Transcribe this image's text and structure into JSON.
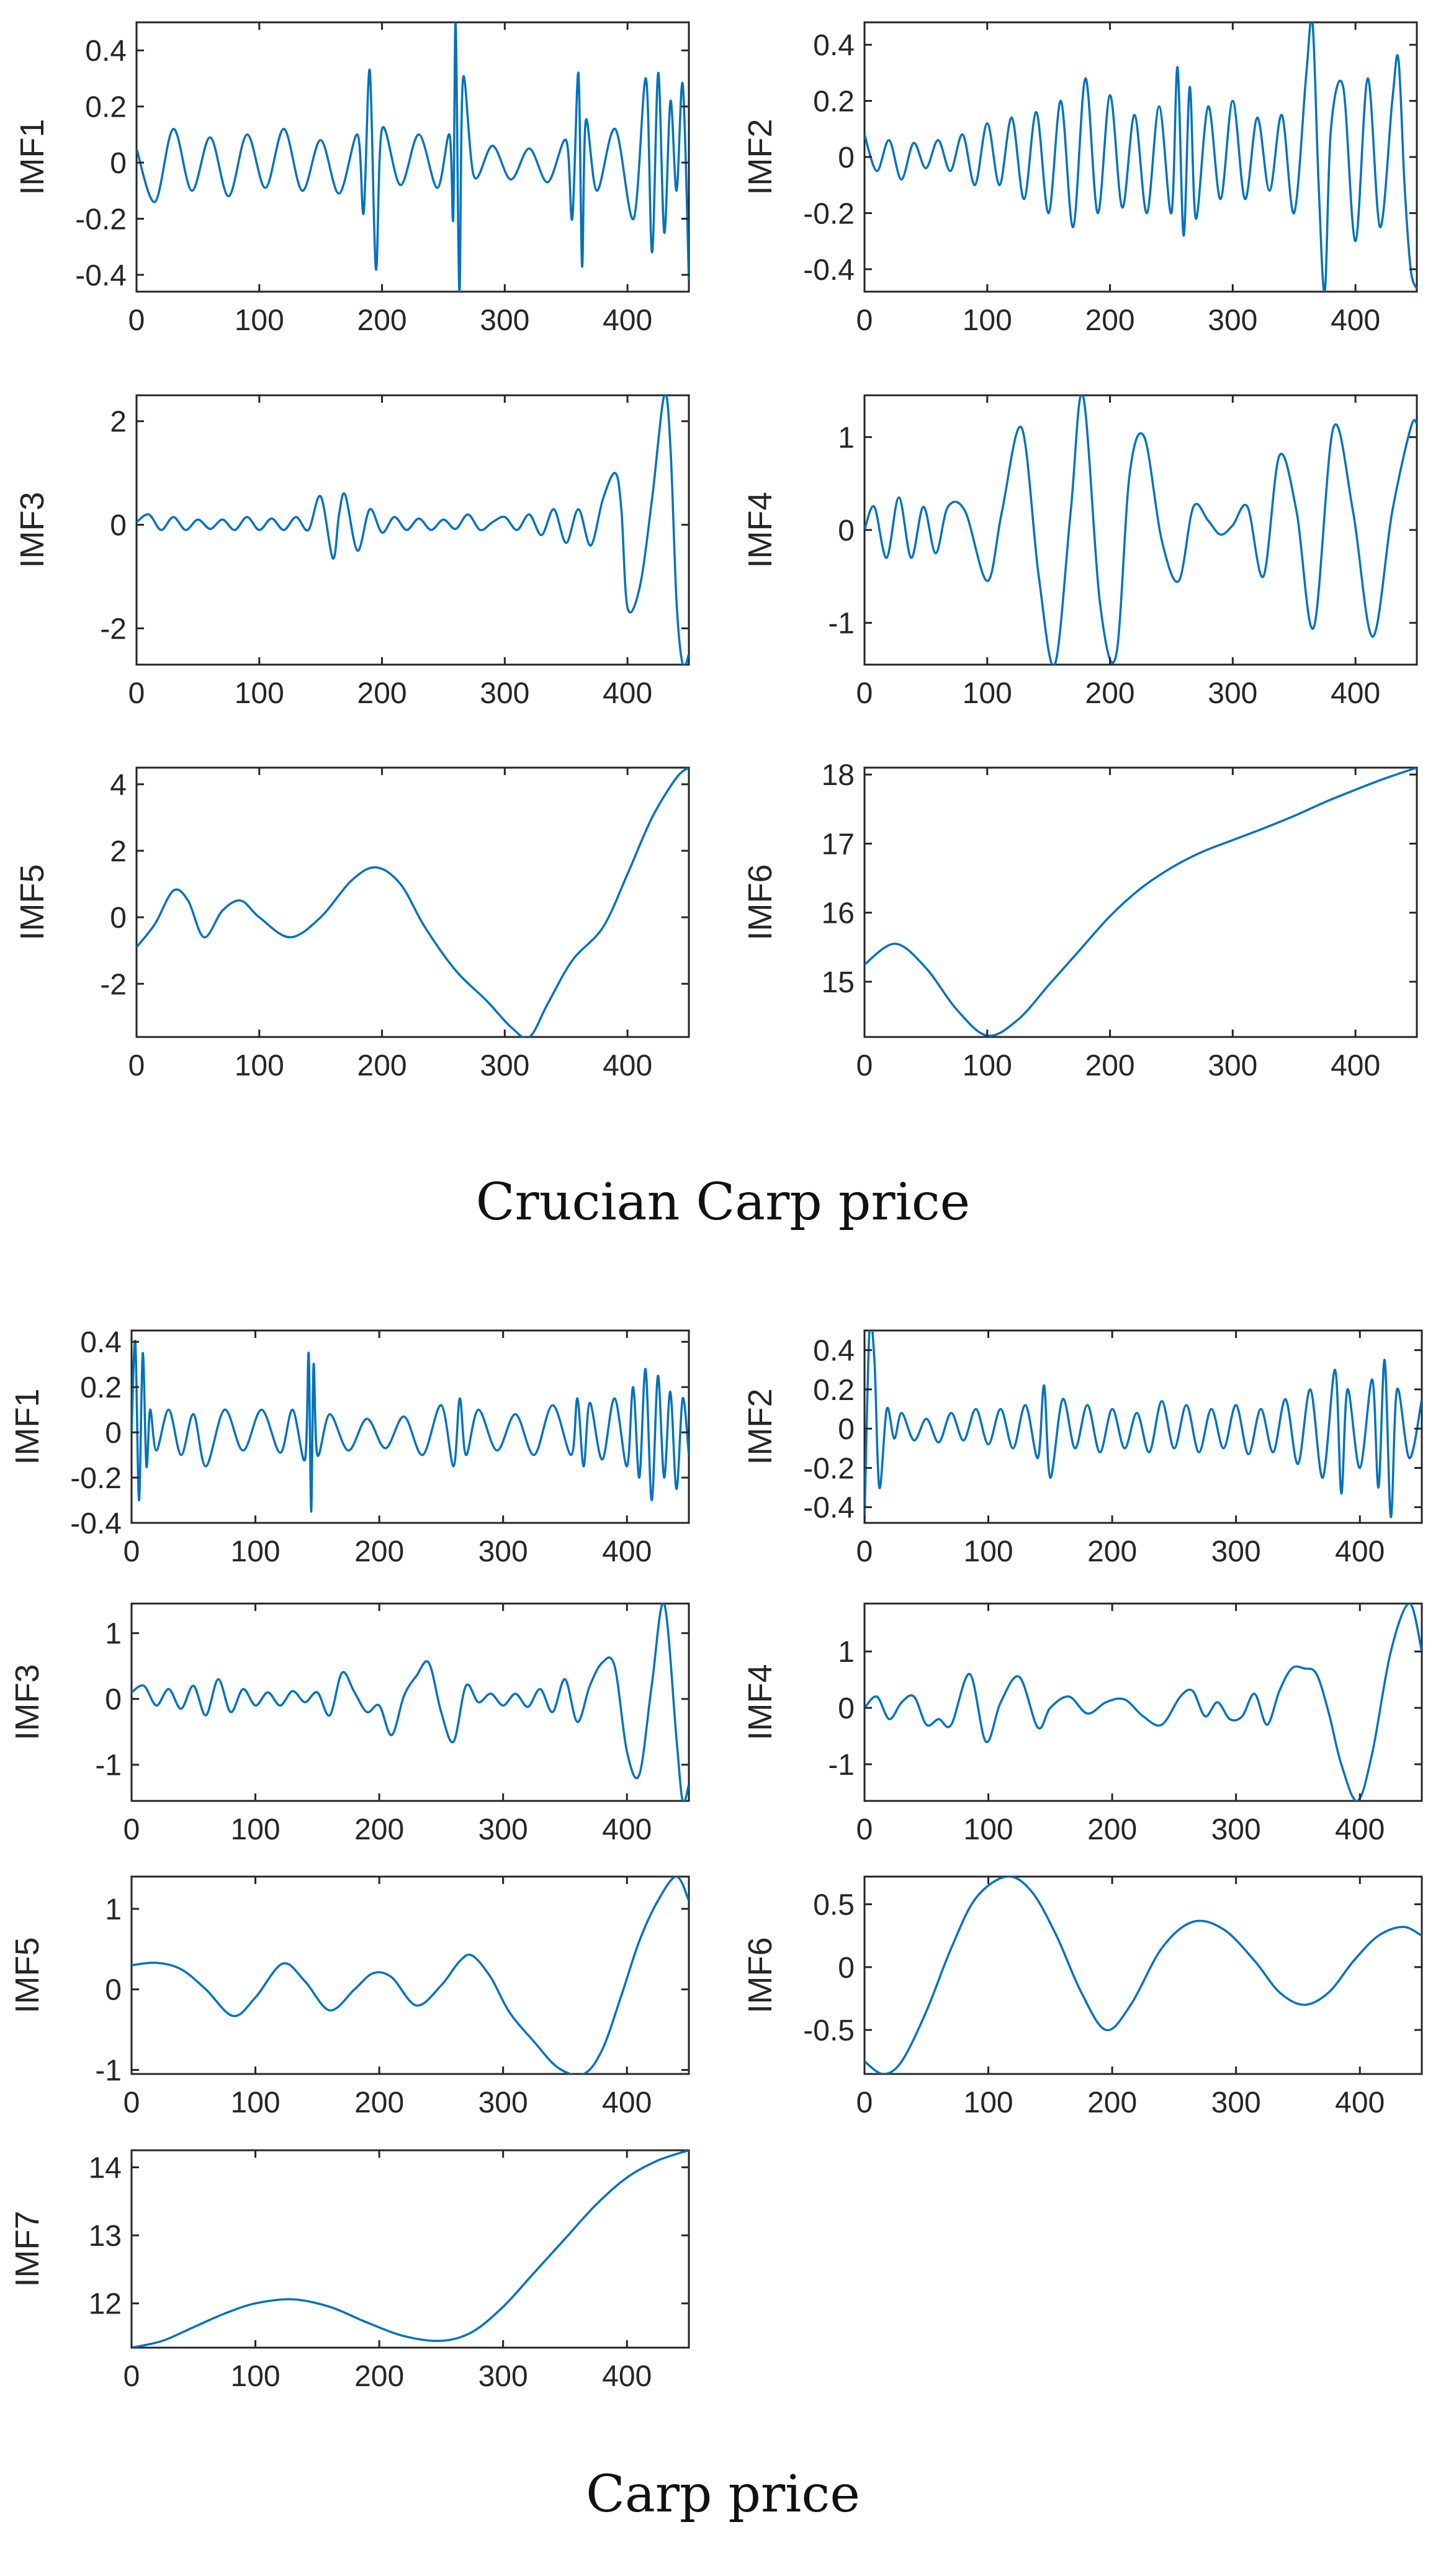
{
  "captions": {
    "top": "Crucian Carp price",
    "bottom": "Carp price"
  },
  "colors": {
    "line": "#0072BD",
    "axis": "#262626"
  },
  "chart_data": [
    {
      "id": "c-imf1",
      "group": "Crucian Carp price",
      "type": "line",
      "ylabel": "IMF1",
      "xlim": [
        0,
        450
      ],
      "ylim": [
        -0.46,
        0.5
      ],
      "xticks": [
        "0",
        "100",
        "200",
        "300",
        "400"
      ],
      "yticks": [
        "-0.4",
        "-0.2",
        "0",
        "0.2",
        "0.4"
      ],
      "x": [
        0,
        15,
        30,
        45,
        60,
        75,
        90,
        105,
        120,
        135,
        150,
        165,
        180,
        185,
        190,
        195,
        200,
        215,
        230,
        245,
        255,
        258,
        260,
        263,
        266,
        275,
        290,
        305,
        320,
        335,
        350,
        355,
        360,
        363,
        366,
        375,
        390,
        405,
        415,
        420,
        425,
        430,
        435,
        440,
        445,
        450
      ],
      "y": [
        0.05,
        -0.14,
        0.12,
        -0.1,
        0.09,
        -0.12,
        0.1,
        -0.09,
        0.12,
        -0.1,
        0.08,
        -0.11,
        0.1,
        -0.18,
        0.33,
        -0.38,
        0.12,
        -0.08,
        0.1,
        -0.09,
        0.1,
        -0.2,
        0.5,
        -0.46,
        0.3,
        -0.05,
        0.06,
        -0.06,
        0.05,
        -0.07,
        0.08,
        -0.2,
        0.32,
        -0.37,
        0.15,
        -0.1,
        0.12,
        -0.2,
        0.3,
        -0.32,
        0.32,
        -0.25,
        0.22,
        -0.1,
        0.28,
        -0.42
      ]
    },
    {
      "id": "c-imf2",
      "group": "Crucian Carp price",
      "type": "line",
      "ylabel": "IMF2",
      "xlim": [
        0,
        450
      ],
      "ylim": [
        -0.48,
        0.48
      ],
      "xticks": [
        "0",
        "100",
        "200",
        "300",
        "400"
      ],
      "yticks": [
        "-0.4",
        "-0.2",
        "0",
        "0.2",
        "0.4"
      ],
      "x": [
        0,
        10,
        20,
        30,
        40,
        50,
        60,
        70,
        80,
        90,
        100,
        110,
        120,
        130,
        140,
        150,
        160,
        170,
        180,
        190,
        200,
        210,
        220,
        230,
        240,
        250,
        255,
        260,
        265,
        270,
        280,
        290,
        300,
        310,
        320,
        330,
        340,
        350,
        360,
        365,
        370,
        375,
        380,
        390,
        400,
        410,
        420,
        430,
        435,
        440,
        445,
        450
      ],
      "y": [
        0.08,
        -0.05,
        0.06,
        -0.08,
        0.05,
        -0.04,
        0.06,
        -0.05,
        0.08,
        -0.1,
        0.12,
        -0.1,
        0.14,
        -0.15,
        0.16,
        -0.2,
        0.2,
        -0.25,
        0.28,
        -0.2,
        0.22,
        -0.18,
        0.15,
        -0.2,
        0.18,
        -0.2,
        0.32,
        -0.28,
        0.25,
        -0.22,
        0.18,
        -0.15,
        0.2,
        -0.15,
        0.14,
        -0.12,
        0.15,
        -0.2,
        0.3,
        0.48,
        -0.1,
        -0.48,
        0.1,
        0.25,
        -0.3,
        0.28,
        -0.25,
        0.2,
        0.35,
        -0.1,
        -0.4,
        -0.47
      ]
    },
    {
      "id": "c-imf3",
      "group": "Crucian Carp price",
      "type": "line",
      "ylabel": "IMF3",
      "xlim": [
        0,
        450
      ],
      "ylim": [
        -2.7,
        2.5
      ],
      "xticks": [
        "0",
        "100",
        "200",
        "300",
        "400"
      ],
      "yticks": [
        "-2",
        "0",
        "2"
      ],
      "x": [
        0,
        10,
        20,
        30,
        40,
        50,
        60,
        70,
        80,
        90,
        100,
        110,
        120,
        130,
        140,
        150,
        160,
        165,
        170,
        180,
        190,
        200,
        210,
        220,
        230,
        240,
        250,
        260,
        270,
        280,
        290,
        300,
        310,
        320,
        330,
        340,
        350,
        360,
        370,
        380,
        390,
        395,
        400,
        410,
        420,
        430,
        435,
        440,
        445,
        450
      ],
      "y": [
        0.05,
        0.2,
        -0.1,
        0.15,
        -0.1,
        0.1,
        -0.08,
        0.1,
        -0.1,
        0.15,
        -0.1,
        0.12,
        -0.1,
        0.15,
        -0.1,
        0.55,
        -0.65,
        0.2,
        0.58,
        -0.5,
        0.3,
        -0.15,
        0.15,
        -0.1,
        0.12,
        -0.1,
        0.1,
        -0.08,
        0.2,
        -0.1,
        0.05,
        0.15,
        -0.1,
        0.2,
        -0.2,
        0.3,
        -0.35,
        0.3,
        -0.4,
        0.5,
        1.0,
        0.3,
        -1.6,
        -1.2,
        0.5,
        2.5,
        1.5,
        -1.5,
        -2.7,
        -2.5
      ]
    },
    {
      "id": "c-imf4",
      "group": "Crucian Carp price",
      "type": "line",
      "ylabel": "IMF4",
      "xlim": [
        0,
        450
      ],
      "ylim": [
        -1.45,
        1.45
      ],
      "xticks": [
        "0",
        "100",
        "200",
        "300",
        "400"
      ],
      "yticks": [
        "-1",
        "0",
        "1"
      ],
      "x": [
        0,
        8,
        18,
        28,
        38,
        48,
        58,
        68,
        82,
        100,
        112,
        128,
        142,
        155,
        168,
        178,
        192,
        205,
        216,
        228,
        242,
        256,
        268,
        280,
        290,
        300,
        312,
        325,
        338,
        352,
        366,
        382,
        398,
        414,
        430,
        445,
        450
      ],
      "y": [
        0.0,
        0.25,
        -0.3,
        0.35,
        -0.3,
        0.25,
        -0.25,
        0.25,
        0.2,
        -0.55,
        0.2,
        1.1,
        -0.5,
        -1.45,
        0.2,
        1.45,
        -0.8,
        -1.35,
        0.6,
        1.0,
        -0.1,
        -0.55,
        0.25,
        0.1,
        -0.05,
        0.05,
        0.25,
        -0.5,
        0.8,
        0.2,
        -1.05,
        1.1,
        0.2,
        -1.15,
        0.2,
        1.1,
        1.15
      ]
    },
    {
      "id": "c-imf5",
      "group": "Crucian Carp price",
      "type": "line",
      "ylabel": "IMF5",
      "xlim": [
        0,
        450
      ],
      "ylim": [
        -3.6,
        4.5
      ],
      "xticks": [
        "0",
        "100",
        "200",
        "300",
        "400"
      ],
      "yticks": [
        "-2",
        "0",
        "2",
        "4"
      ],
      "x": [
        0,
        15,
        30,
        42,
        55,
        70,
        85,
        100,
        125,
        150,
        175,
        195,
        215,
        235,
        260,
        285,
        305,
        320,
        335,
        355,
        380,
        400,
        420,
        440,
        450
      ],
      "y": [
        -0.9,
        -0.2,
        0.8,
        0.5,
        -0.6,
        0.2,
        0.5,
        0.0,
        -0.6,
        0.0,
        1.1,
        1.5,
        1.0,
        -0.3,
        -1.6,
        -2.5,
        -3.3,
        -3.6,
        -2.6,
        -1.3,
        -0.3,
        1.3,
        3.0,
        4.2,
        4.5
      ]
    },
    {
      "id": "c-imf6",
      "group": "Crucian Carp price",
      "type": "line",
      "ylabel": "IMF6",
      "xlim": [
        0,
        450
      ],
      "ylim": [
        14.2,
        18.1
      ],
      "xticks": [
        "0",
        "100",
        "200",
        "300",
        "400"
      ],
      "yticks": [
        "15",
        "16",
        "17",
        "18"
      ],
      "x": [
        0,
        25,
        50,
        75,
        100,
        125,
        150,
        175,
        200,
        225,
        250,
        275,
        300,
        325,
        350,
        375,
        400,
        425,
        450
      ],
      "y": [
        15.25,
        15.55,
        15.2,
        14.6,
        14.22,
        14.45,
        14.95,
        15.45,
        15.95,
        16.35,
        16.65,
        16.88,
        17.05,
        17.22,
        17.4,
        17.6,
        17.78,
        17.95,
        18.1
      ]
    },
    {
      "id": "b-imf1",
      "group": "Carp price",
      "type": "line",
      "ylabel": "IMF1",
      "xlim": [
        0,
        450
      ],
      "ylim": [
        -0.4,
        0.45
      ],
      "xticks": [
        "0",
        "100",
        "200",
        "300",
        "400"
      ],
      "yticks": [
        "-0.4",
        "-0.2",
        "0",
        "0.2",
        "0.4"
      ],
      "x": [
        0,
        3,
        6,
        9,
        12,
        15,
        20,
        30,
        40,
        50,
        60,
        75,
        90,
        105,
        120,
        130,
        140,
        143,
        145,
        147,
        150,
        160,
        175,
        190,
        205,
        220,
        235,
        250,
        260,
        265,
        270,
        280,
        295,
        310,
        325,
        340,
        355,
        360,
        365,
        370,
        380,
        390,
        400,
        405,
        410,
        415,
        420,
        425,
        430,
        435,
        440,
        445,
        450
      ],
      "y": [
        0.0,
        0.4,
        -0.3,
        0.35,
        -0.15,
        0.1,
        -0.08,
        0.1,
        -0.1,
        0.08,
        -0.15,
        0.1,
        -0.08,
        0.1,
        -0.09,
        0.1,
        -0.12,
        0.35,
        -0.35,
        0.3,
        -0.1,
        0.08,
        -0.08,
        0.06,
        -0.07,
        0.07,
        -0.1,
        0.12,
        -0.15,
        0.15,
        -0.1,
        0.1,
        -0.08,
        0.08,
        -0.1,
        0.12,
        -0.1,
        0.15,
        -0.15,
        0.13,
        -0.12,
        0.15,
        -0.15,
        0.2,
        -0.2,
        0.28,
        -0.3,
        0.25,
        -0.2,
        0.18,
        -0.25,
        0.15,
        -0.1
      ]
    },
    {
      "id": "b-imf2",
      "group": "Carp price",
      "type": "line",
      "ylabel": "IMF2",
      "xlim": [
        0,
        450
      ],
      "ylim": [
        -0.48,
        0.5
      ],
      "xticks": [
        "0",
        "100",
        "200",
        "300",
        "400"
      ],
      "yticks": [
        "-0.4",
        "-0.2",
        "0",
        "0.2",
        "0.4"
      ],
      "x": [
        0,
        4,
        8,
        12,
        18,
        24,
        30,
        40,
        50,
        60,
        70,
        80,
        90,
        100,
        110,
        120,
        130,
        140,
        145,
        150,
        160,
        170,
        180,
        190,
        200,
        210,
        220,
        230,
        240,
        250,
        260,
        270,
        280,
        290,
        300,
        310,
        320,
        330,
        340,
        350,
        360,
        370,
        380,
        385,
        390,
        400,
        410,
        415,
        420,
        425,
        430,
        440,
        450
      ],
      "y": [
        -0.48,
        0.5,
        0.35,
        -0.3,
        0.1,
        -0.05,
        0.08,
        -0.06,
        0.05,
        -0.07,
        0.08,
        -0.06,
        0.1,
        -0.08,
        0.1,
        -0.1,
        0.12,
        -0.15,
        0.22,
        -0.25,
        0.15,
        -0.1,
        0.12,
        -0.12,
        0.1,
        -0.1,
        0.08,
        -0.12,
        0.14,
        -0.1,
        0.12,
        -0.12,
        0.1,
        -0.1,
        0.12,
        -0.13,
        0.1,
        -0.12,
        0.15,
        -0.18,
        0.2,
        -0.25,
        0.3,
        -0.33,
        0.2,
        -0.2,
        0.25,
        -0.3,
        0.35,
        -0.45,
        0.2,
        -0.15,
        0.15
      ]
    },
    {
      "id": "b-imf3",
      "group": "Carp price",
      "type": "line",
      "ylabel": "IMF3",
      "xlim": [
        0,
        450
      ],
      "ylim": [
        -1.55,
        1.45
      ],
      "xticks": [
        "0",
        "100",
        "200",
        "300",
        "400"
      ],
      "yticks": [
        "-1",
        "0",
        "1"
      ],
      "x": [
        0,
        10,
        20,
        30,
        40,
        50,
        60,
        70,
        80,
        90,
        100,
        110,
        120,
        130,
        140,
        150,
        160,
        170,
        180,
        190,
        200,
        210,
        220,
        230,
        240,
        250,
        260,
        270,
        280,
        290,
        300,
        310,
        320,
        330,
        340,
        350,
        360,
        370,
        380,
        390,
        400,
        410,
        420,
        430,
        440,
        445,
        450
      ],
      "y": [
        0.1,
        0.2,
        -0.1,
        0.15,
        -0.15,
        0.2,
        -0.25,
        0.3,
        -0.2,
        0.15,
        -0.1,
        0.1,
        -0.1,
        0.12,
        -0.05,
        0.1,
        -0.25,
        0.4,
        0.1,
        -0.2,
        -0.1,
        -0.55,
        0.05,
        0.35,
        0.55,
        -0.2,
        -0.65,
        0.2,
        -0.05,
        0.08,
        -0.1,
        0.08,
        -0.12,
        0.15,
        -0.2,
        0.3,
        -0.35,
        0.2,
        0.55,
        0.5,
        -0.8,
        -1.15,
        0.2,
        1.45,
        -0.6,
        -1.55,
        -1.3
      ]
    },
    {
      "id": "b-imf4",
      "group": "Carp price",
      "type": "line",
      "ylabel": "IMF4",
      "xlim": [
        0,
        450
      ],
      "ylim": [
        -1.65,
        1.85
      ],
      "xticks": [
        "0",
        "100",
        "200",
        "300",
        "400"
      ],
      "yticks": [
        "-1",
        "0",
        "1"
      ],
      "x": [
        0,
        10,
        20,
        30,
        40,
        50,
        60,
        70,
        85,
        98,
        110,
        125,
        140,
        150,
        165,
        180,
        195,
        210,
        225,
        240,
        255,
        265,
        275,
        285,
        295,
        305,
        315,
        325,
        335,
        345,
        355,
        365,
        375,
        385,
        398,
        410,
        425,
        440,
        450
      ],
      "y": [
        0.0,
        0.2,
        -0.2,
        0.1,
        0.2,
        -0.3,
        -0.2,
        -0.3,
        0.6,
        -0.6,
        0.1,
        0.55,
        -0.35,
        0.0,
        0.2,
        -0.1,
        0.1,
        0.15,
        -0.15,
        -0.3,
        0.2,
        0.3,
        -0.15,
        0.1,
        -0.2,
        -0.15,
        0.25,
        -0.3,
        0.3,
        0.7,
        0.7,
        0.6,
        -0.1,
        -1.0,
        -1.65,
        -0.8,
        1.0,
        1.85,
        1.0
      ]
    },
    {
      "id": "b-imf5",
      "group": "Carp price",
      "type": "line",
      "ylabel": "IMF5",
      "xlim": [
        0,
        450
      ],
      "ylim": [
        -1.05,
        1.4
      ],
      "xticks": [
        "0",
        "100",
        "200",
        "300",
        "400"
      ],
      "yticks": [
        "-1",
        "0",
        "1"
      ],
      "x": [
        0,
        20,
        40,
        60,
        82,
        100,
        122,
        140,
        160,
        180,
        195,
        210,
        230,
        250,
        265,
        275,
        290,
        305,
        325,
        345,
        365,
        380,
        395,
        410,
        425,
        440,
        450
      ],
      "y": [
        0.3,
        0.33,
        0.25,
        0.0,
        -0.33,
        -0.1,
        0.32,
        0.1,
        -0.26,
        0.0,
        0.2,
        0.15,
        -0.2,
        0.05,
        0.35,
        0.42,
        0.15,
        -0.28,
        -0.65,
        -0.98,
        -1.05,
        -0.75,
        -0.1,
        0.6,
        1.1,
        1.4,
        1.1
      ]
    },
    {
      "id": "b-imf6",
      "group": "Carp price",
      "type": "line",
      "ylabel": "IMF6",
      "xlim": [
        0,
        450
      ],
      "ylim": [
        -0.85,
        0.72
      ],
      "xticks": [
        "0",
        "100",
        "200",
        "300",
        "400"
      ],
      "yticks": [
        "-0.5",
        "0",
        "0.5"
      ],
      "x": [
        0,
        15,
        30,
        50,
        70,
        90,
        115,
        135,
        155,
        175,
        195,
        215,
        240,
        265,
        290,
        315,
        335,
        355,
        375,
        395,
        415,
        435,
        450
      ],
      "y": [
        -0.75,
        -0.85,
        -0.75,
        -0.35,
        0.15,
        0.55,
        0.72,
        0.6,
        0.25,
        -0.2,
        -0.5,
        -0.3,
        0.15,
        0.36,
        0.3,
        0.05,
        -0.2,
        -0.3,
        -0.2,
        0.05,
        0.25,
        0.32,
        0.25
      ]
    },
    {
      "id": "b-imf7",
      "group": "Carp price",
      "type": "line",
      "ylabel": "IMF7",
      "xlim": [
        0,
        450
      ],
      "ylim": [
        11.35,
        14.25
      ],
      "xticks": [
        "0",
        "100",
        "200",
        "300",
        "400"
      ],
      "yticks": [
        "12",
        "13",
        "14"
      ],
      "x": [
        0,
        25,
        50,
        75,
        100,
        130,
        160,
        190,
        220,
        250,
        275,
        300,
        325,
        350,
        375,
        400,
        425,
        450
      ],
      "y": [
        11.35,
        11.45,
        11.65,
        11.85,
        12.0,
        12.06,
        11.95,
        11.72,
        11.52,
        11.45,
        11.58,
        11.95,
        12.45,
        12.95,
        13.45,
        13.85,
        14.1,
        14.25
      ]
    }
  ]
}
